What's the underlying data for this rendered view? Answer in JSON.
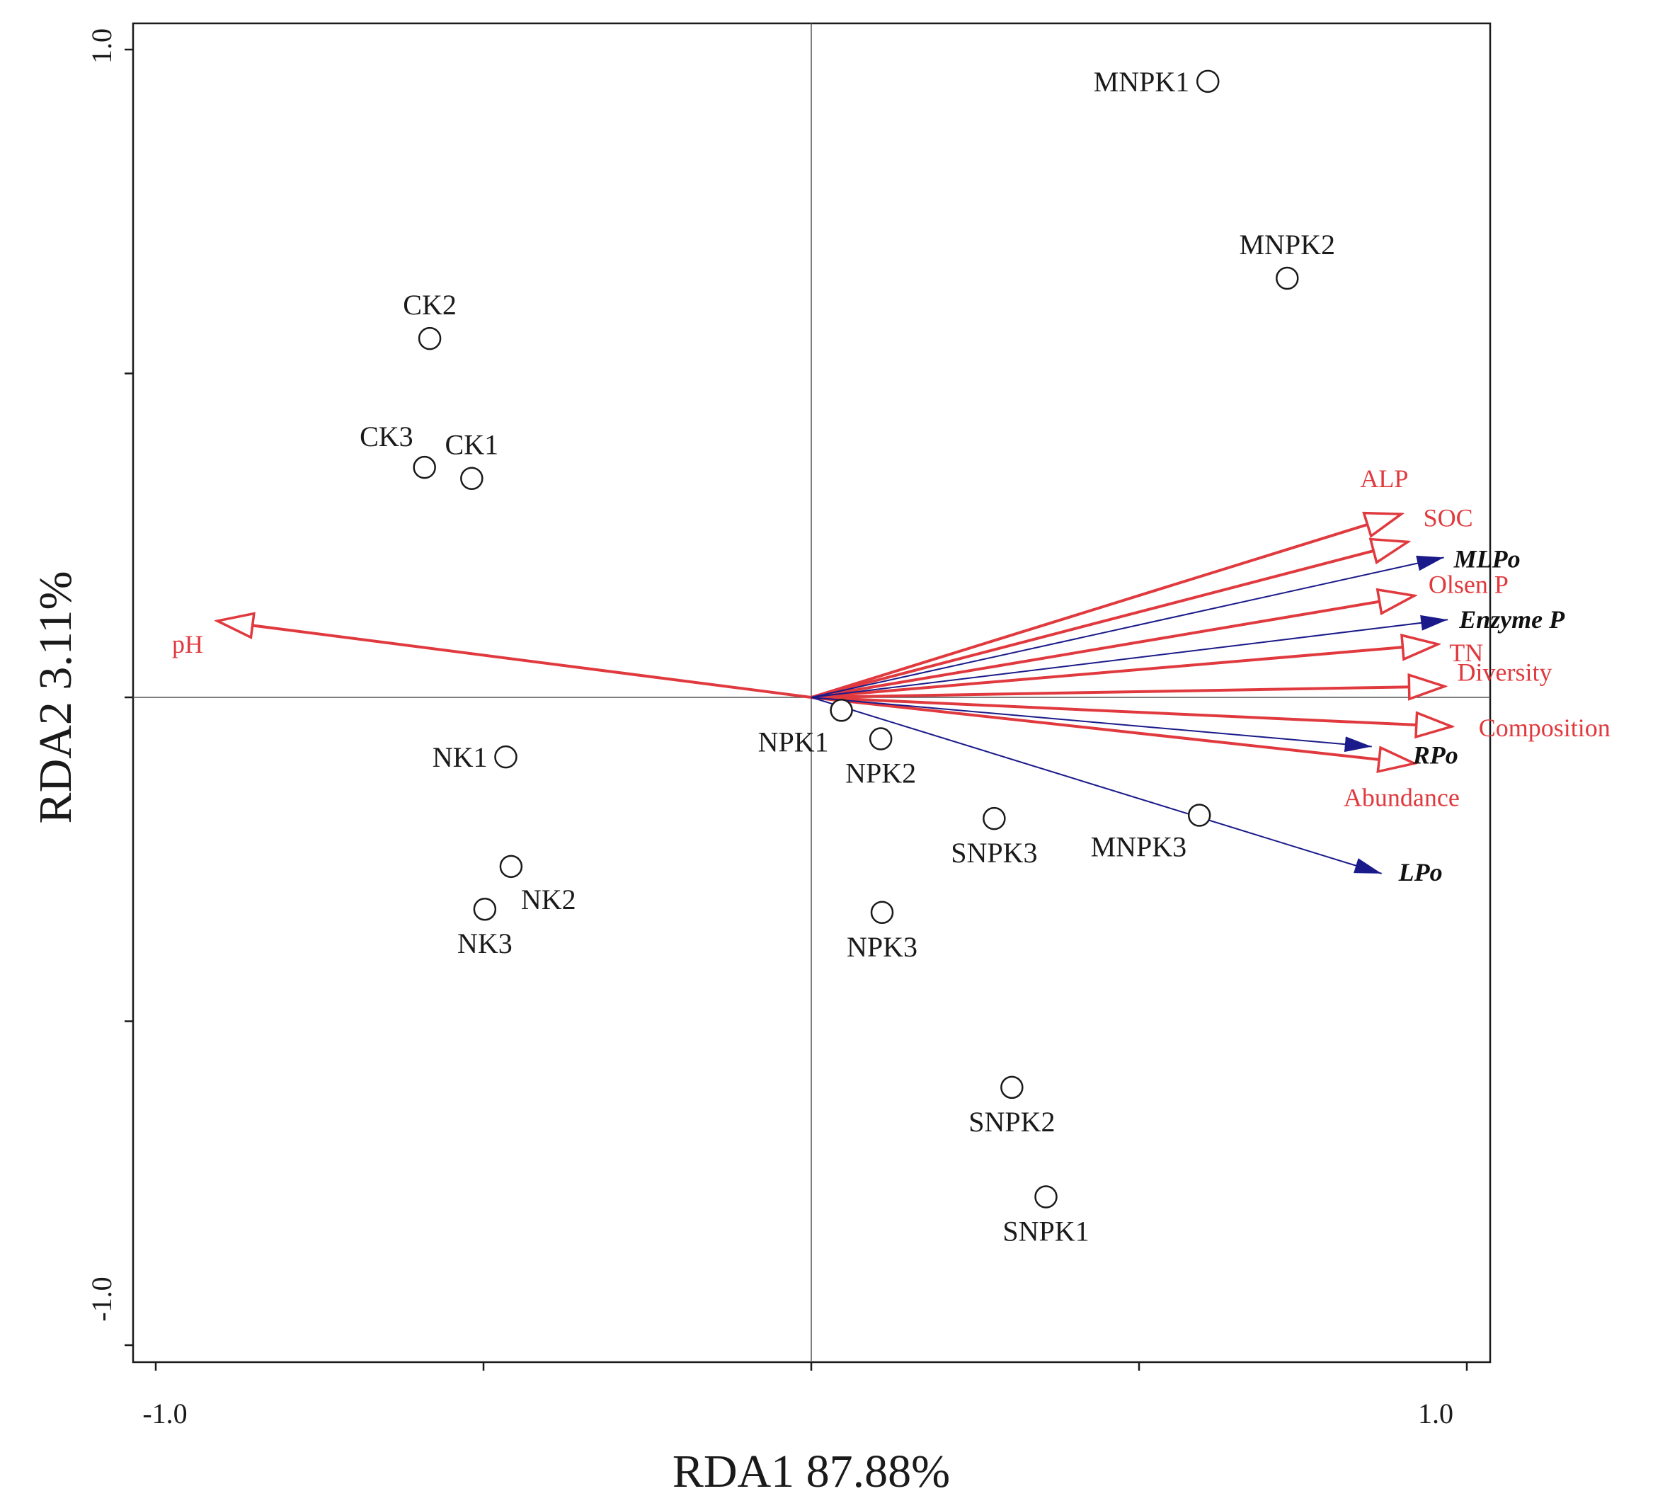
{
  "chart_data": {
    "type": "scatter",
    "title": "",
    "xlabel": "RDA1 87.88%",
    "ylabel": "RDA2 3.11%",
    "xlim": [
      -1.0,
      1.0
    ],
    "ylim": [
      -1.0,
      1.0
    ],
    "x_tick_labels": [
      "-1.0",
      "1.0"
    ],
    "y_tick_labels": [
      "1.0",
      "-1.0"
    ],
    "grid": false,
    "colors": {
      "environment": "#e0393e",
      "species": "#1a1a8a",
      "sample": "#1a1a1a",
      "axes": "#1a1a1a"
    },
    "samples": [
      {
        "label": "MNPK1",
        "x": 0.605,
        "y": 0.951,
        "label_anchor": "end",
        "label_side": "left"
      },
      {
        "label": "MNPK2",
        "x": 0.726,
        "y": 0.647,
        "label_anchor": "middle",
        "label_side": "above"
      },
      {
        "label": "CK2",
        "x": -0.582,
        "y": 0.554,
        "label_anchor": "middle",
        "label_side": "above"
      },
      {
        "label": "CK3",
        "x": -0.59,
        "y": 0.355,
        "label_anchor": "end",
        "label_side": "above-left"
      },
      {
        "label": "CK1",
        "x": -0.518,
        "y": 0.338,
        "label_anchor": "middle",
        "label_side": "above"
      },
      {
        "label": "NK1",
        "x": -0.466,
        "y": -0.092,
        "label_anchor": "end",
        "label_side": "left"
      },
      {
        "label": "NK2",
        "x": -0.458,
        "y": -0.261,
        "label_anchor": "start",
        "label_side": "below-right"
      },
      {
        "label": "NK3",
        "x": -0.498,
        "y": -0.327,
        "label_anchor": "middle",
        "label_side": "below"
      },
      {
        "label": "NPK1",
        "x": 0.046,
        "y": -0.02,
        "label_anchor": "end",
        "label_side": "below-left"
      },
      {
        "label": "NPK2",
        "x": 0.106,
        "y": -0.064,
        "label_anchor": "middle",
        "label_side": "below"
      },
      {
        "label": "NPK3",
        "x": 0.108,
        "y": -0.332,
        "label_anchor": "middle",
        "label_side": "below"
      },
      {
        "label": "SNPK3",
        "x": 0.279,
        "y": -0.187,
        "label_anchor": "middle",
        "label_side": "below"
      },
      {
        "label": "MNPK3",
        "x": 0.592,
        "y": -0.182,
        "label_anchor": "end",
        "label_side": "below-left"
      },
      {
        "label": "SNPK2",
        "x": 0.306,
        "y": -0.602,
        "label_anchor": "middle",
        "label_side": "below"
      },
      {
        "label": "SNPK1",
        "x": 0.358,
        "y": -0.771,
        "label_anchor": "middle",
        "label_side": "below"
      }
    ],
    "environment_vectors": [
      {
        "label": "pH",
        "x": -0.906,
        "y": 0.118
      },
      {
        "label": "ALP",
        "x": 0.9,
        "y": 0.283
      },
      {
        "label": "SOC",
        "x": 0.91,
        "y": 0.24
      },
      {
        "label": "Olsen P",
        "x": 0.92,
        "y": 0.157
      },
      {
        "label": "TN",
        "x": 0.956,
        "y": 0.082
      },
      {
        "label": "Diversity",
        "x": 0.966,
        "y": 0.017
      },
      {
        "label": "Composition",
        "x": 0.977,
        "y": -0.045
      },
      {
        "label": "Abundance",
        "x": 0.92,
        "y": -0.102
      }
    ],
    "species_vectors": [
      {
        "label": "MLPo",
        "x": 0.965,
        "y": 0.216
      },
      {
        "label": "Enzyme P",
        "x": 0.971,
        "y": 0.12
      },
      {
        "label": "RPo",
        "x": 0.855,
        "y": -0.076
      },
      {
        "label": "LPo",
        "x": 0.87,
        "y": -0.272
      }
    ]
  }
}
